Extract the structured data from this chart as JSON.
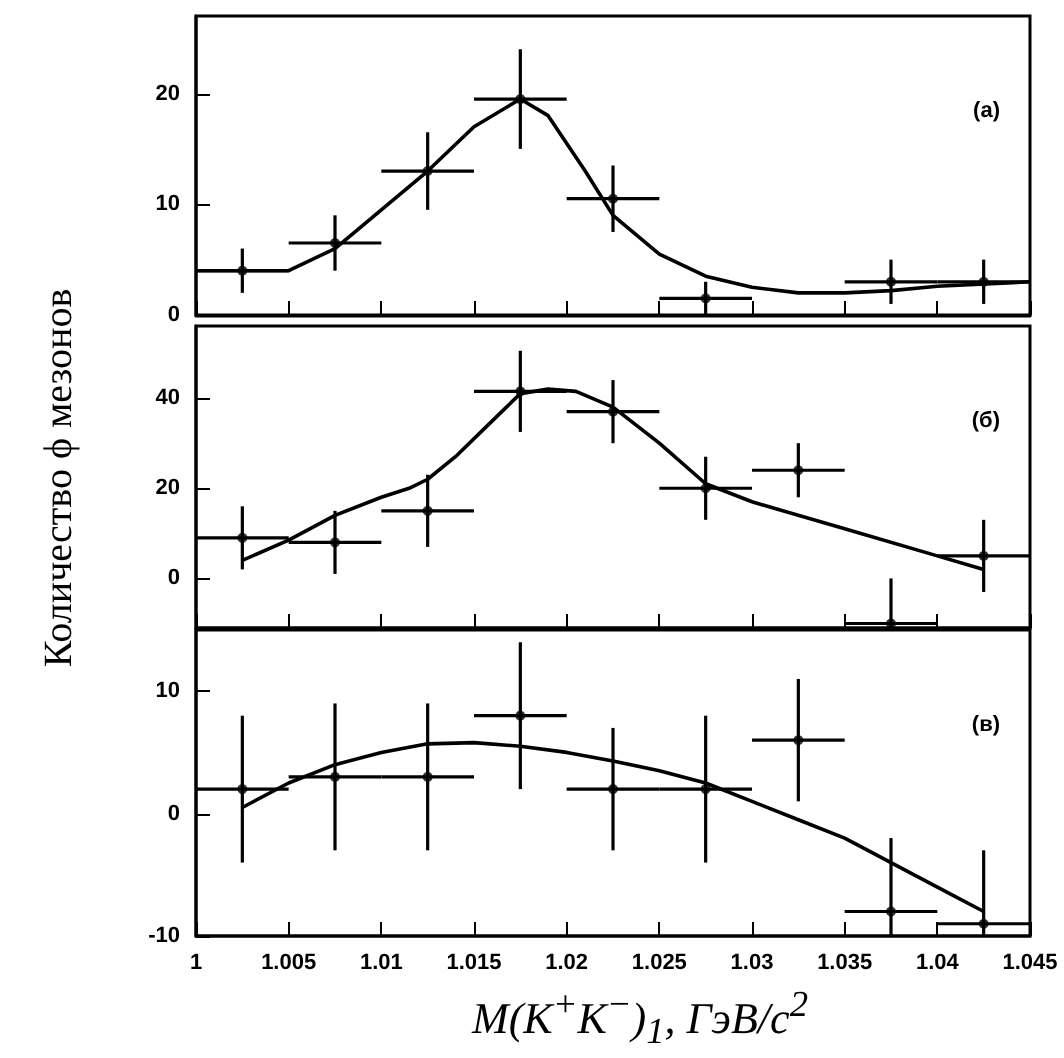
{
  "chart_data": [
    {
      "type": "scatter",
      "annotations": [
        "(а)"
      ],
      "xlim": [
        1,
        1.045
      ],
      "xticks": [
        1,
        1.005,
        1.01,
        1.015,
        1.02,
        1.025,
        1.03,
        1.035,
        1.04,
        1.045
      ],
      "ylim": [
        0,
        27
      ],
      "yticks": [
        0,
        10,
        20
      ],
      "tick_labels": "y",
      "series": [
        {
          "marker": "circle",
          "color": "#000000",
          "x": [
            1.0025,
            1.0075,
            1.0125,
            1.0175,
            1.0225,
            1.0275,
            1.0325,
            1.0375,
            1.0425
          ],
          "values": [
            4,
            6.5,
            13,
            19.5,
            10.5,
            1.5,
            null,
            3,
            3
          ],
          "errors": [
            2,
            2.5,
            3.5,
            4.5,
            3,
            1.5,
            null,
            2,
            2
          ],
          "xerrors": [
            0.0025,
            0.0025,
            0.0025,
            0.0025,
            0.0025,
            0.0025,
            null,
            0.0025,
            0.0025
          ]
        },
        {
          "type": "line",
          "color": "#000000",
          "x": [
            1.0,
            1.005,
            1.0075,
            1.01,
            1.0125,
            1.015,
            1.0175,
            1.019,
            1.021,
            1.0225,
            1.025,
            1.0275,
            1.03,
            1.0325,
            1.035,
            1.0375,
            1.04,
            1.045
          ],
          "values": [
            4,
            4,
            6,
            9.5,
            13,
            17,
            19.5,
            18,
            13,
            9,
            5.5,
            3.5,
            2.5,
            2,
            2,
            2.2,
            2.6,
            3
          ]
        }
      ]
    },
    {
      "type": "scatter",
      "ylabel": "Количество ϕ мезонов",
      "annotations": [
        "(б)"
      ],
      "xlim": [
        1,
        1.045
      ],
      "xticks": [
        1,
        1.005,
        1.01,
        1.015,
        1.02,
        1.025,
        1.03,
        1.035,
        1.04,
        1.045
      ],
      "ylim": [
        -11,
        56
      ],
      "yticks": [
        0,
        20,
        40
      ],
      "tick_labels": "y",
      "series": [
        {
          "marker": "circle",
          "color": "#000000",
          "x": [
            1.0025,
            1.0075,
            1.0125,
            1.0175,
            1.0225,
            1.0275,
            1.0325,
            1.0375,
            1.0425
          ],
          "values": [
            9,
            8,
            15,
            41.5,
            37,
            20,
            24,
            -10,
            5
          ],
          "errors": [
            7,
            7,
            8,
            9,
            7,
            7,
            6,
            [
              -11,
              0
            ],
            8
          ],
          "xerrors": [
            0.0025,
            0.0025,
            0.0025,
            0.0025,
            0.0025,
            0.0025,
            0.0025,
            0.0025,
            0.0025
          ]
        },
        {
          "type": "line",
          "color": "#000000",
          "x": [
            1.0025,
            1.005,
            1.0075,
            1.01,
            1.0115,
            1.0125,
            1.014,
            1.0165,
            1.0175,
            1.019,
            1.0205,
            1.0225,
            1.025,
            1.0275,
            1.03,
            1.035,
            1.04,
            1.0425
          ],
          "values": [
            4,
            8.5,
            14,
            18,
            20,
            22,
            27,
            37,
            41,
            42,
            41.5,
            38,
            30,
            21,
            17,
            11,
            5,
            2
          ]
        }
      ]
    },
    {
      "type": "scatter",
      "xlabel": "M(K$^{+}$K$^{−}$)$_{1}$, ГэВ/c$^{2}$",
      "annotations": [
        "(в)"
      ],
      "xlim": [
        1,
        1.045
      ],
      "xticks": [
        1,
        1.005,
        1.01,
        1.015,
        1.02,
        1.025,
        1.03,
        1.035,
        1.04,
        1.045
      ],
      "ylim": [
        -10,
        15
      ],
      "yticks": [
        -10,
        0,
        10
      ],
      "series": [
        {
          "marker": "circle",
          "color": "#000000",
          "x": [
            1.0025,
            1.0075,
            1.0125,
            1.0175,
            1.0225,
            1.0275,
            1.0325,
            1.0375,
            1.0425
          ],
          "values": [
            2,
            3,
            3,
            8,
            2,
            2,
            6,
            -8,
            -9
          ],
          "errors": [
            6,
            6,
            6,
            6,
            5,
            6,
            5,
            [
              -10,
              -2
            ],
            [
              -10,
              -3
            ]
          ],
          "xerrors": [
            0.0025,
            0.0025,
            0.0025,
            0.0025,
            0.0025,
            0.0025,
            0.0025,
            0.0025,
            0.0025
          ]
        },
        {
          "type": "line",
          "color": "#000000",
          "x": [
            1.0025,
            1.005,
            1.0075,
            1.01,
            1.0125,
            1.015,
            1.0175,
            1.02,
            1.0225,
            1.025,
            1.0275,
            1.03,
            1.0325,
            1.035,
            1.0375,
            1.04,
            1.0425
          ],
          "values": [
            0.5,
            2.5,
            4,
            5,
            5.7,
            5.8,
            5.5,
            5,
            4.3,
            3.5,
            2.5,
            1,
            -0.5,
            -2,
            -4,
            -6,
            -8
          ]
        }
      ]
    }
  ]
}
